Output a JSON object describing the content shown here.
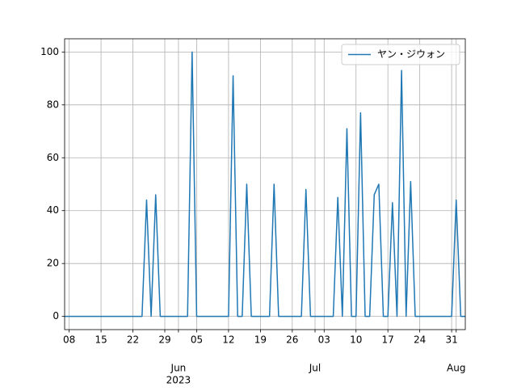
{
  "chart_data": {
    "type": "line",
    "x": [
      "2023-05-07",
      "2023-05-08",
      "2023-05-09",
      "2023-05-10",
      "2023-05-11",
      "2023-05-12",
      "2023-05-13",
      "2023-05-14",
      "2023-05-15",
      "2023-05-16",
      "2023-05-17",
      "2023-05-18",
      "2023-05-19",
      "2023-05-20",
      "2023-05-21",
      "2023-05-22",
      "2023-05-23",
      "2023-05-24",
      "2023-05-25",
      "2023-05-26",
      "2023-05-27",
      "2023-05-28",
      "2023-05-29",
      "2023-05-30",
      "2023-05-31",
      "2023-06-01",
      "2023-06-02",
      "2023-06-03",
      "2023-06-04",
      "2023-06-05",
      "2023-06-06",
      "2023-06-07",
      "2023-06-08",
      "2023-06-09",
      "2023-06-10",
      "2023-06-11",
      "2023-06-12",
      "2023-06-13",
      "2023-06-14",
      "2023-06-15",
      "2023-06-16",
      "2023-06-17",
      "2023-06-18",
      "2023-06-19",
      "2023-06-20",
      "2023-06-21",
      "2023-06-22",
      "2023-06-23",
      "2023-06-24",
      "2023-06-25",
      "2023-06-26",
      "2023-06-27",
      "2023-06-28",
      "2023-06-29",
      "2023-06-30",
      "2023-07-01",
      "2023-07-02",
      "2023-07-03",
      "2023-07-04",
      "2023-07-05",
      "2023-07-06",
      "2023-07-07",
      "2023-07-08",
      "2023-07-09",
      "2023-07-10",
      "2023-07-11",
      "2023-07-12",
      "2023-07-13",
      "2023-07-14",
      "2023-07-15",
      "2023-07-16",
      "2023-07-17",
      "2023-07-18",
      "2023-07-19",
      "2023-07-20",
      "2023-07-21",
      "2023-07-22",
      "2023-07-23",
      "2023-07-24",
      "2023-07-25",
      "2023-07-26",
      "2023-07-27",
      "2023-07-28",
      "2023-07-29",
      "2023-07-30",
      "2023-07-31",
      "2023-08-01",
      "2023-08-02",
      "2023-08-03"
    ],
    "series": [
      {
        "name": "ヤン・ジウォン",
        "color": "#1f77b4",
        "values": [
          0,
          0,
          0,
          0,
          0,
          0,
          0,
          0,
          0,
          0,
          0,
          0,
          0,
          0,
          0,
          0,
          0,
          0,
          44,
          0,
          46,
          0,
          0,
          0,
          0,
          0,
          0,
          0,
          100,
          0,
          0,
          0,
          0,
          0,
          0,
          0,
          0,
          91,
          0,
          0,
          50,
          0,
          0,
          0,
          0,
          0,
          50,
          0,
          0,
          0,
          0,
          0,
          0,
          48,
          0,
          0,
          0,
          0,
          0,
          0,
          45,
          0,
          71,
          0,
          0,
          77,
          0,
          0,
          46,
          50,
          0,
          0,
          43,
          0,
          93,
          0,
          51,
          0,
          0,
          0,
          0,
          0,
          0,
          0,
          0,
          0,
          44,
          0,
          0
        ]
      }
    ],
    "xlim": [
      "2023-05-07",
      "2023-08-03"
    ],
    "xticks": [
      {
        "value": "2023-05-08",
        "label": "08"
      },
      {
        "value": "2023-05-15",
        "label": "15"
      },
      {
        "value": "2023-05-22",
        "label": "22"
      },
      {
        "value": "2023-05-29",
        "label": "29"
      },
      {
        "value": "2023-06-01",
        "label": "Jun"
      },
      {
        "value": "2023-06-05",
        "label": "05"
      },
      {
        "value": "2023-06-12",
        "label": "12"
      },
      {
        "value": "2023-06-19",
        "label": "19"
      },
      {
        "value": "2023-06-26",
        "label": "26"
      },
      {
        "value": "2023-07-01",
        "label": "Jul"
      },
      {
        "value": "2023-07-03",
        "label": "03"
      },
      {
        "value": "2023-07-10",
        "label": "10"
      },
      {
        "value": "2023-07-17",
        "label": "17"
      },
      {
        "value": "2023-07-24",
        "label": "24"
      },
      {
        "value": "2023-07-31",
        "label": "31"
      },
      {
        "value": "2023-08-01",
        "label": "Aug"
      }
    ],
    "x_year_label": "2023",
    "ylim": [
      -5,
      105
    ],
    "yticks": [
      0,
      20,
      40,
      60,
      80,
      100
    ],
    "grid": true,
    "legend": "upper right"
  }
}
